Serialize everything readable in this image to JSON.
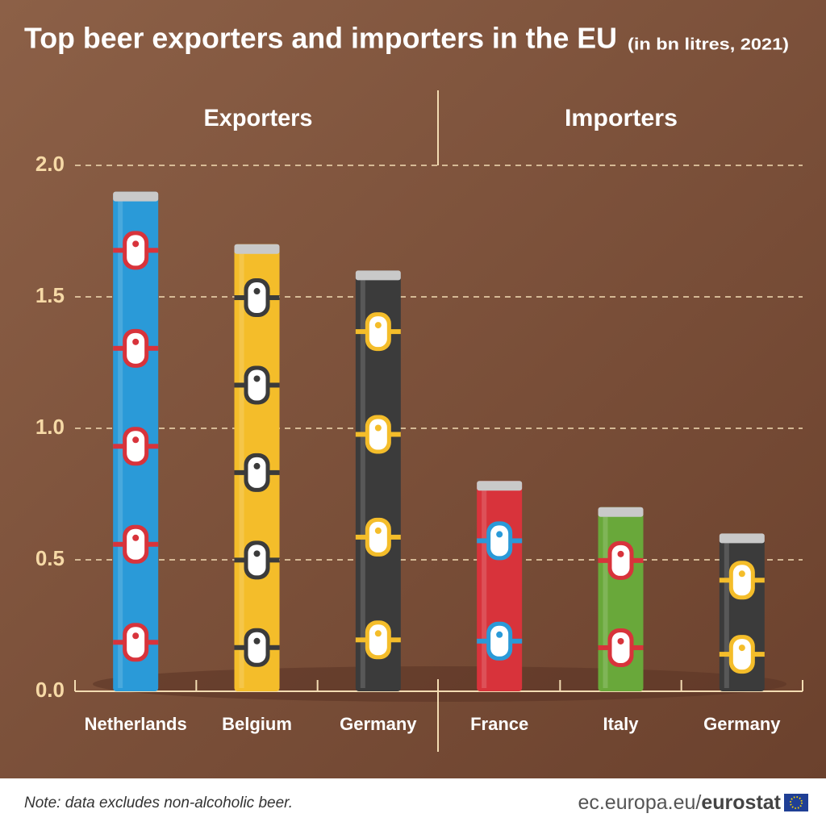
{
  "chart_data": {
    "type": "bar",
    "title": "Top beer exporters and importers in the EU",
    "subtitle": "(in bn litres, 2021)",
    "groups": [
      "Exporters",
      "Importers"
    ],
    "categories": [
      "Netherlands",
      "Belgium",
      "Germany",
      "France",
      "Italy",
      "Germany"
    ],
    "values": [
      1.9,
      1.7,
      1.6,
      0.8,
      0.7,
      0.6
    ],
    "colors": [
      "#2a9ad8",
      "#f4bd2a",
      "#3b3b3b",
      "#d8333b",
      "#69a83a",
      "#3b3b3b"
    ],
    "ylim": [
      0,
      2
    ],
    "yticks": [
      {
        "value": 0,
        "label": "0.0"
      },
      0.5,
      {
        "value": 1,
        "label": "1.0"
      },
      1.5,
      {
        "value": 2,
        "label": "2.0"
      }
    ],
    "grid": true,
    "note": "Note: data excludes non-alcoholic beer.",
    "source": "ec.europa.eu/",
    "brand": "eurostat"
  }
}
